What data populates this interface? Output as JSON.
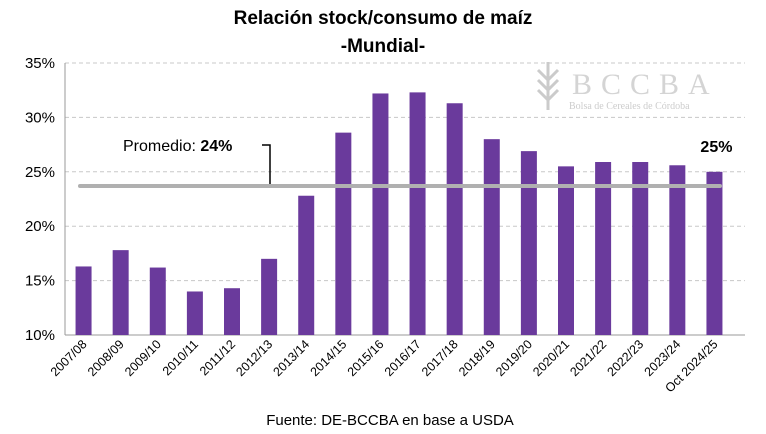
{
  "chart_data": {
    "type": "bar",
    "title": "Relación stock/consumo de maíz",
    "subtitle": "-Mundial-",
    "xlabel": "",
    "ylabel": "",
    "ylim": [
      10,
      35
    ],
    "yticks": [
      "10%",
      "15%",
      "20%",
      "25%",
      "30%",
      "35%"
    ],
    "ytick_values": [
      10,
      15,
      20,
      25,
      30,
      35
    ],
    "grid": true,
    "categories": [
      "2007/08",
      "2008/09",
      "2009/10",
      "2010/11",
      "2011/12",
      "2012/13",
      "2013/14",
      "2014/15",
      "2015/16",
      "2016/17",
      "2017/18",
      "2018/19",
      "2019/20",
      "2020/21",
      "2021/22",
      "2022/23",
      "2023/24",
      "Oct 2024/25"
    ],
    "values": [
      16.3,
      17.8,
      16.2,
      14.0,
      14.3,
      17.0,
      22.8,
      28.6,
      32.2,
      32.3,
      31.3,
      28.0,
      26.9,
      25.5,
      25.9,
      25.9,
      25.6,
      25.0
    ],
    "bar_color": "#6a3a9c",
    "average": {
      "label": "Promedio: ",
      "value_label": "24%",
      "value": 23.7,
      "color": "#b0b0b0"
    },
    "last_label": "25%",
    "source": "Fuente: DE-BCCBA en base a USDA"
  },
  "logo": {
    "name": "BCCBA",
    "subtitle": "Bolsa de Cereales de Córdoba"
  }
}
